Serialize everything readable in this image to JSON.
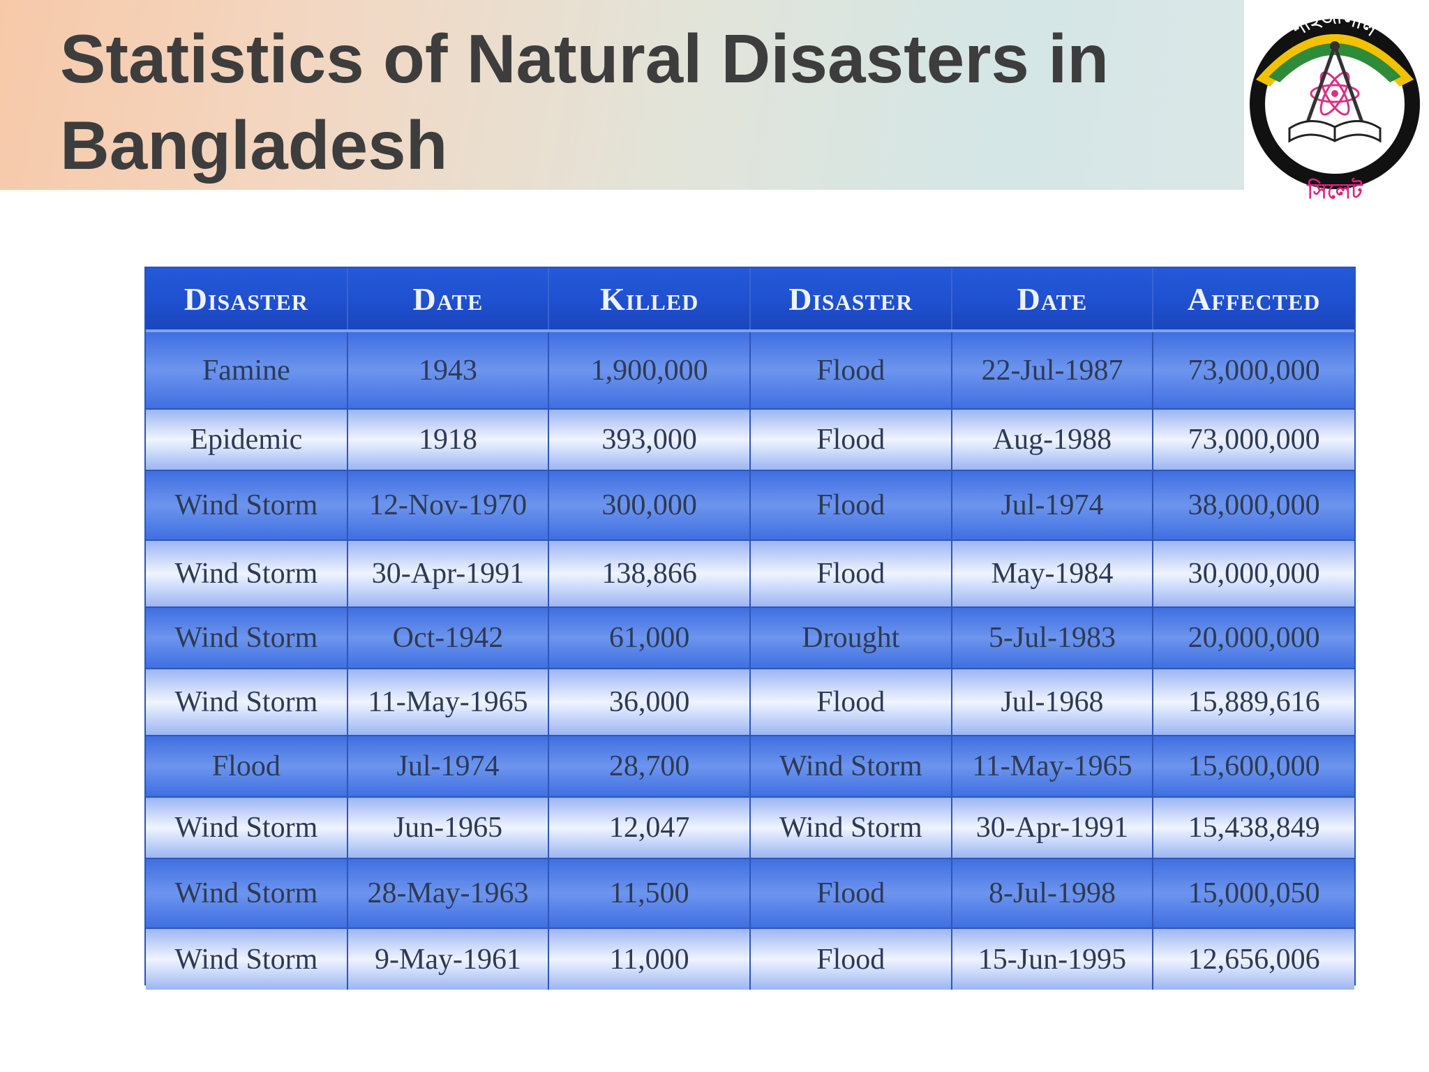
{
  "title": "Statistics of Natural Disasters in Bangladesh",
  "logo": {
    "icon": "university-seal",
    "text_top": "শাহজালাল",
    "text_ring": "বিজ্ঞান ও প্রযুক্তি বিশ্ববিদ্যালয়",
    "text_bottom": "সিলেট",
    "colors": {
      "ring": "#000000",
      "band": "#2e8b3a",
      "accent": "#f2c200",
      "text_bottom": "#e0237a"
    }
  },
  "table": {
    "headers": [
      "Disaster",
      "Date",
      "Killed",
      "Disaster",
      "Date",
      "Affected"
    ],
    "rows": [
      [
        "Famine",
        "1943",
        "1,900,000",
        "Flood",
        "22-Jul-1987",
        "73,000,000"
      ],
      [
        "Epidemic",
        "1918",
        "393,000",
        "Flood",
        "Aug-1988",
        "73,000,000"
      ],
      [
        "Wind Storm",
        "12-Nov-1970",
        "300,000",
        "Flood",
        "Jul-1974",
        "38,000,000"
      ],
      [
        "Wind Storm",
        "30-Apr-1991",
        "138,866",
        "Flood",
        "May-1984",
        "30,000,000"
      ],
      [
        "Wind Storm",
        "Oct-1942",
        "61,000",
        "Drought",
        "5-Jul-1983",
        "20,000,000"
      ],
      [
        "Wind Storm",
        "11-May-1965",
        "36,000",
        "Flood",
        "Jul-1968",
        "15,889,616"
      ],
      [
        "Flood",
        "Jul-1974",
        "28,700",
        "Wind Storm",
        "11-May-1965",
        "15,600,000"
      ],
      [
        "Wind Storm",
        "Jun-1965",
        "12,047",
        "Wind Storm",
        "30-Apr-1991",
        "15,438,849"
      ],
      [
        "Wind Storm",
        "28-May-1963",
        "11,500",
        "Flood",
        "8-Jul-1998",
        "15,000,050"
      ],
      [
        "Wind Storm",
        "9-May-1961",
        "11,000",
        "Flood",
        "15-Jun-1995",
        "12,656,006"
      ]
    ],
    "colors": {
      "header": "#1f50cf",
      "row_dark": "#4a78e4",
      "row_light": "#e4ecfd",
      "text": "#2d3a55"
    }
  }
}
